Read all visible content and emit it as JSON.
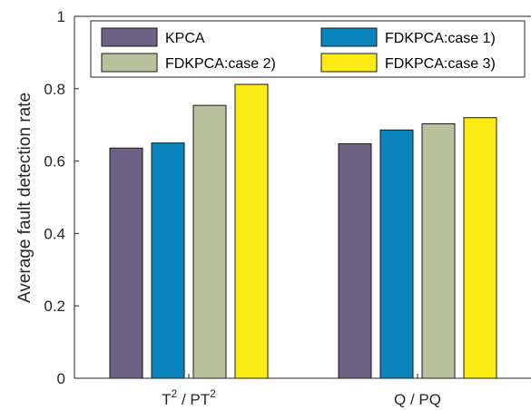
{
  "chart_data": {
    "type": "bar",
    "ylabel": "Average fault detection rate",
    "ylim": [
      0,
      1
    ],
    "yticks": [
      "0",
      "0.2",
      "0.4",
      "0.6",
      "0.8",
      "1"
    ],
    "categories": [
      {
        "base": "T",
        "sup": "2",
        "sep": " / ",
        "base2": "PT",
        "sup2": "2"
      },
      {
        "base": "Q / PQ",
        "sup": "",
        "sep": "",
        "base2": "",
        "sup2": ""
      }
    ],
    "series": [
      {
        "name": "KPCA",
        "color": "#6b6284",
        "values": [
          0.636,
          0.648
        ]
      },
      {
        "name": "FDKPCA:case 1)",
        "color": "#0a84bc",
        "values": [
          0.65,
          0.686
        ]
      },
      {
        "name": "FDKPCA:case 2)",
        "color": "#b8c09c",
        "values": [
          0.754,
          0.703
        ]
      },
      {
        "name": "FDKPCA:case 3)",
        "color": "#fcec14",
        "values": [
          0.812,
          0.72
        ]
      }
    ],
    "legend": {
      "placement": "top",
      "columns": 2
    },
    "grid": false
  }
}
